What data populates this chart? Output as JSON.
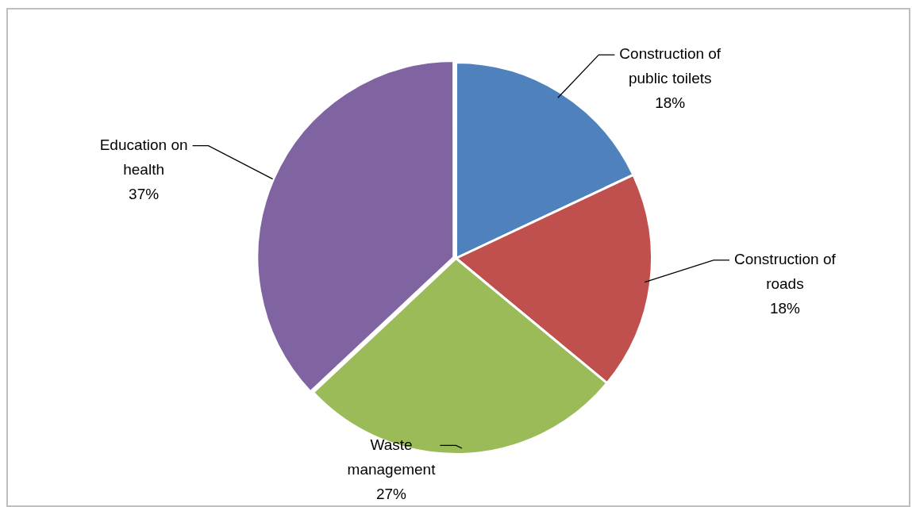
{
  "chart_data": {
    "type": "pie",
    "categories": [
      "Construction of public toilets",
      "Construction of roads",
      "Waste management",
      "Education on health"
    ],
    "values": [
      18,
      18,
      27,
      37
    ],
    "colors": [
      "#4f81bd",
      "#c0504d",
      "#9bbb59",
      "#8064a2"
    ],
    "value_labels": [
      "18%",
      "18%",
      "27%",
      "37%"
    ],
    "legend": false
  }
}
